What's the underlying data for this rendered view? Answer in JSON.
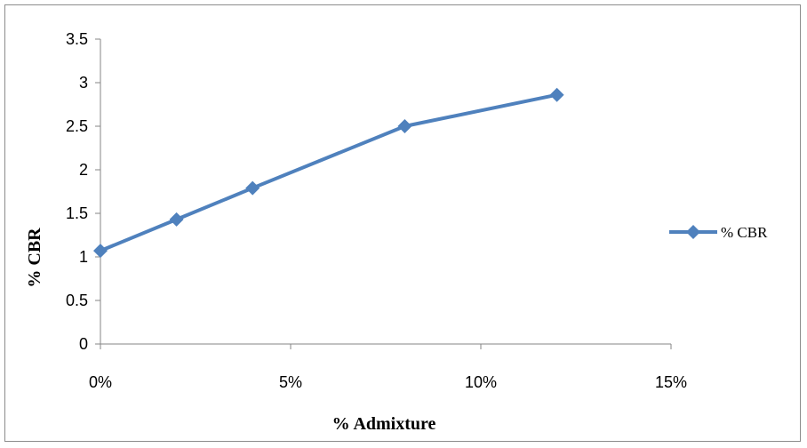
{
  "chart_data": {
    "type": "line",
    "title": "",
    "xlabel": "% Admixture",
    "ylabel": "% CBR",
    "x_ticks": [
      "0%",
      "5%",
      "10%",
      "15%"
    ],
    "y_ticks": [
      "0",
      "0.5",
      "1",
      "1.5",
      "2",
      "2.5",
      "3",
      "3.5"
    ],
    "xlim": [
      0,
      0.15
    ],
    "ylim": [
      0,
      3.5
    ],
    "grid": false,
    "legend_position": "right",
    "series": [
      {
        "name": "% CBR",
        "color": "#4f81bd",
        "marker": "diamond",
        "x": [
          0,
          0.02,
          0.04,
          0.08,
          0.12
        ],
        "y": [
          1.07,
          1.43,
          1.79,
          2.5,
          2.86
        ]
      }
    ]
  }
}
